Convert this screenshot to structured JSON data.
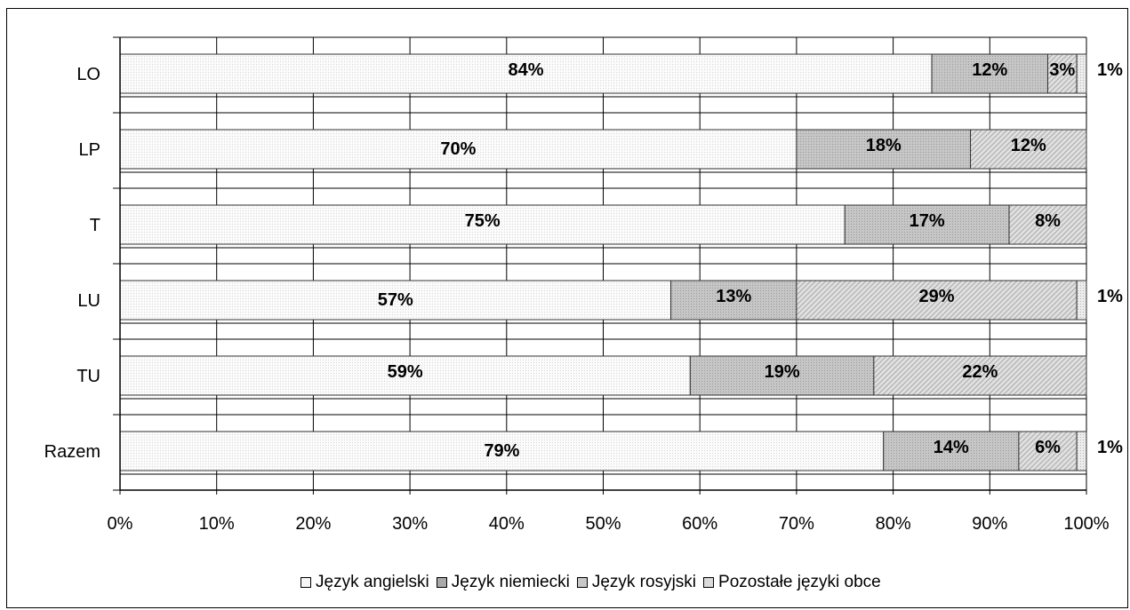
{
  "chart_data": {
    "type": "bar",
    "orientation": "horizontal",
    "stacked": "percent",
    "categories": [
      "LO",
      "LP",
      "T",
      "LU",
      "TU",
      "Razem"
    ],
    "series": [
      {
        "name": "Język angielski",
        "values": [
          84,
          70,
          75,
          57,
          59,
          79
        ],
        "labels": [
          "84%",
          "70%",
          "75%",
          "57%",
          "59%",
          "79%"
        ],
        "color": "#f4f4f4"
      },
      {
        "name": "Język niemiecki",
        "values": [
          12,
          18,
          17,
          13,
          19,
          14
        ],
        "labels": [
          "12%",
          "18%",
          "17%",
          "13%",
          "19%",
          "14%"
        ],
        "color": "#c0c0c0"
      },
      {
        "name": "Język rosyjski",
        "values": [
          3,
          12,
          8,
          29,
          22,
          6
        ],
        "labels": [
          "3%",
          "12%",
          "8%",
          "29%",
          "22%",
          "6%"
        ],
        "color": "#d6d6d6"
      },
      {
        "name": "Pozostałe języki obce",
        "values": [
          1,
          0,
          0,
          1,
          0,
          1
        ],
        "labels": [
          "1%",
          "",
          "",
          "1%",
          "",
          "1%"
        ],
        "color": "#e8e8e8"
      }
    ],
    "xlim": [
      0,
      100
    ],
    "x_ticks": [
      "0%",
      "10%",
      "20%",
      "30%",
      "40%",
      "50%",
      "60%",
      "70%",
      "80%",
      "90%",
      "100%"
    ],
    "grid": true,
    "legend_position": "bottom"
  }
}
